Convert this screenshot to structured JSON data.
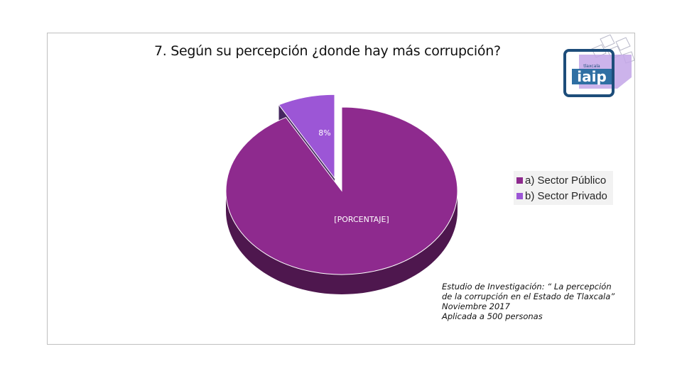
{
  "chart_data": {
    "type": "pie",
    "title": "7. Según su percepción ¿donde hay más corrupción?",
    "slices": [
      {
        "label": "a) Sector Público",
        "value": 92,
        "data_label": "[PORCENTAJE]",
        "color": "#8e2a8e"
      },
      {
        "label": "b) Sector Privado",
        "value": 8,
        "data_label": "8%",
        "color": "#9c56d6"
      }
    ],
    "legend_position": "right"
  },
  "note": {
    "lines": [
      "Estudio de Investigación:  “ La percepción",
      "de la corrupción en el Estado de Tlaxcala”",
      "Noviembre 2017",
      "Aplicada a 500 personas"
    ]
  },
  "logo": {
    "text": "iaip",
    "subtext": "tlaxcala"
  }
}
